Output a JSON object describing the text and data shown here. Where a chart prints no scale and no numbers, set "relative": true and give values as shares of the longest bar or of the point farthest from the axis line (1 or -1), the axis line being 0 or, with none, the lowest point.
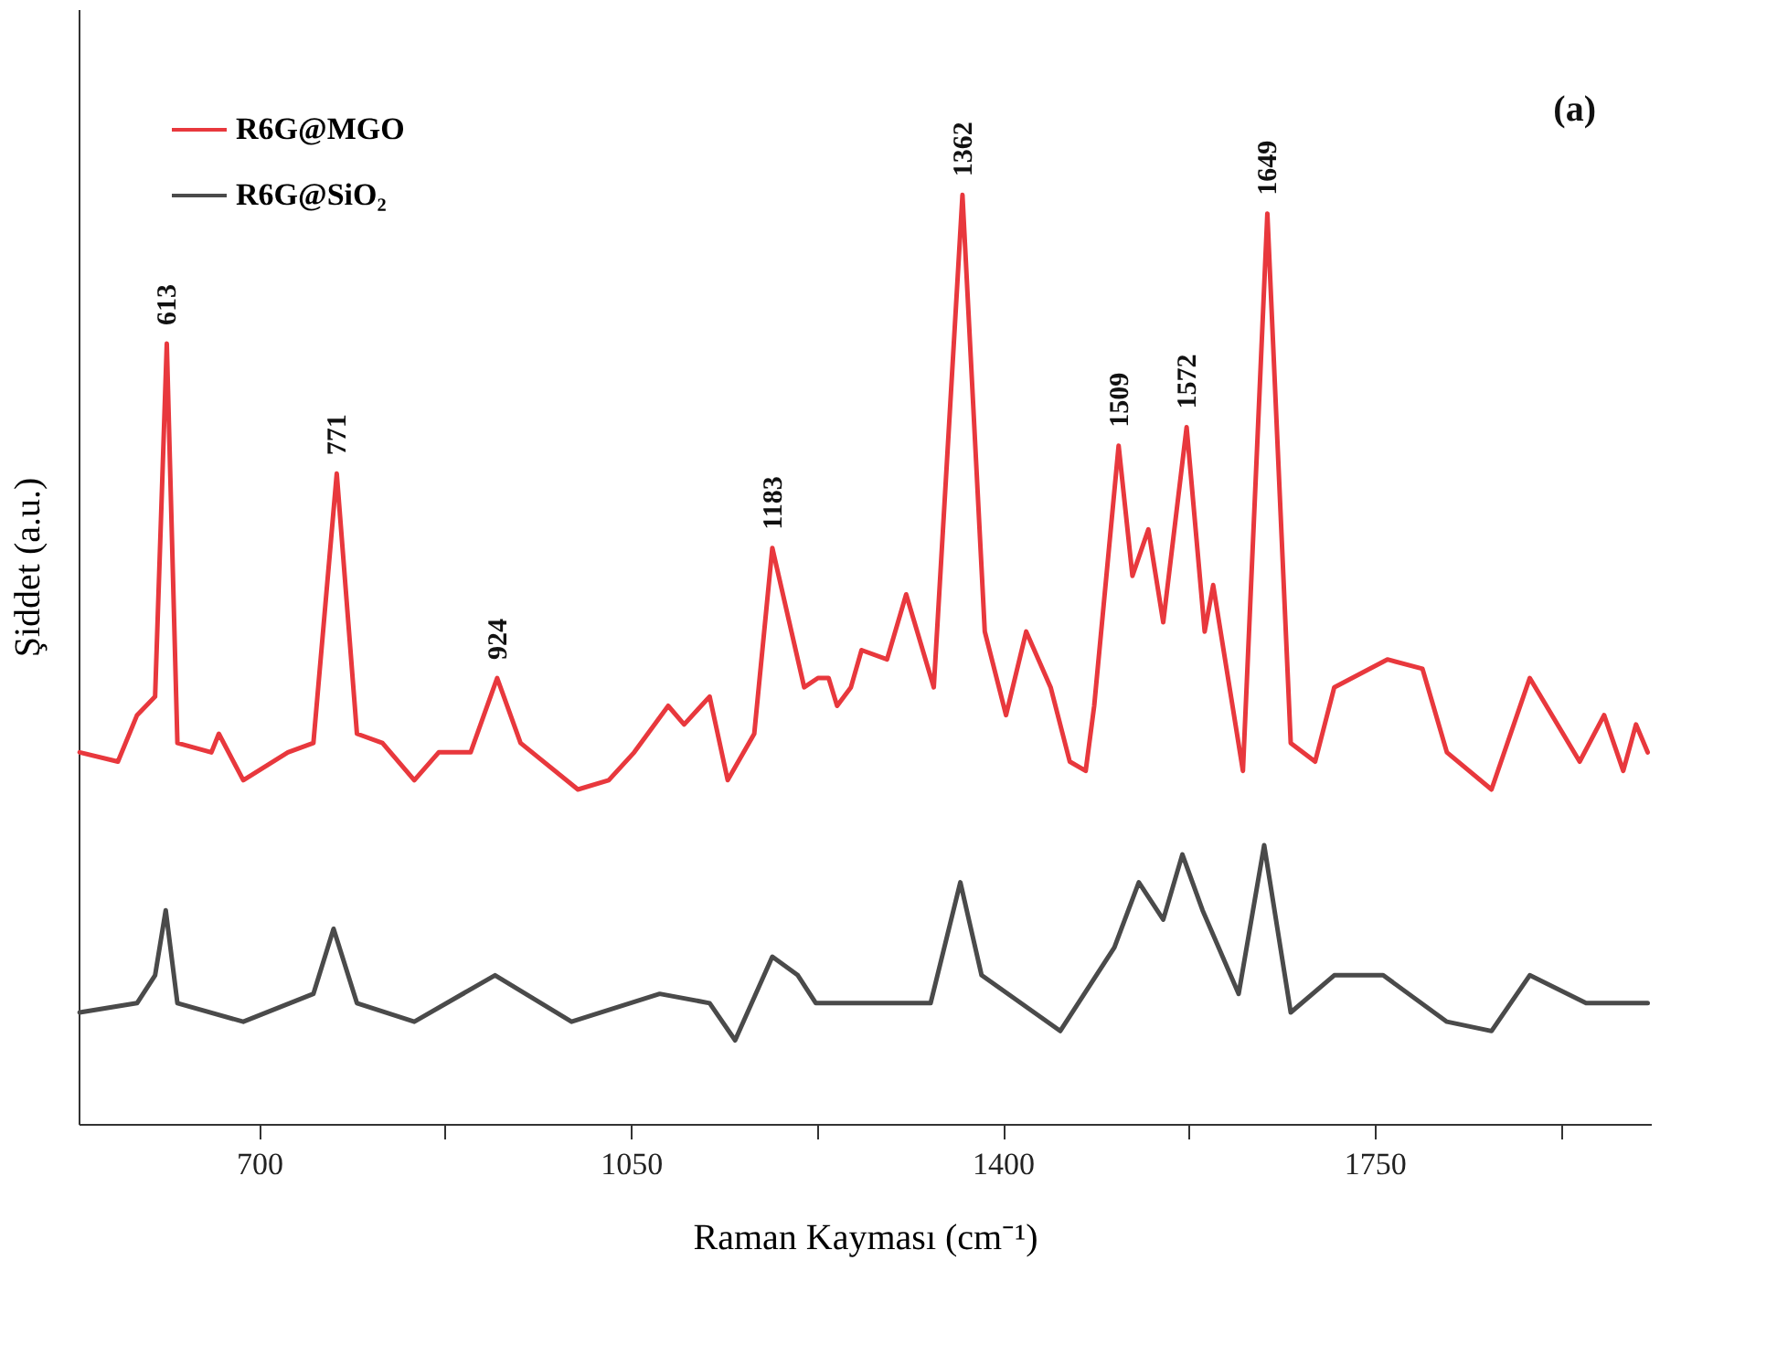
{
  "chart_data": {
    "type": "line",
    "relative": true,
    "xlabel": "Raman Kayması (cm⁻¹)",
    "ylabel": "Şiddet (a.u.)",
    "xlim": [
      530,
      2010
    ],
    "xticks": [
      700,
      {
        "value": 875,
        "label": null
      },
      1050,
      {
        "value": 1225,
        "label": null
      },
      1400,
      {
        "value": 1575,
        "label": null
      },
      1750,
      {
        "value": 1925,
        "label": null
      }
    ],
    "legend": "top left",
    "grid": false,
    "marker": "none",
    "line_style": "solid",
    "series": [
      {
        "name": "R6G@MGO",
        "color": "#e8383d",
        "x": [
          531,
          567,
          585,
          602,
          613,
          623,
          655,
          662,
          685,
          727,
          751,
          773,
          792,
          816,
          846,
          869,
          899,
          924,
          946,
          1000,
          1029,
          1053,
          1085,
          1100,
          1124,
          1141,
          1166,
          1183,
          1201,
          1213,
          1226,
          1236,
          1244,
          1257,
          1267,
          1291,
          1309,
          1335,
          1362,
          1383,
          1403,
          1422,
          1445,
          1463,
          1478,
          1486,
          1509,
          1522,
          1537,
          1551,
          1573,
          1590,
          1598,
          1626,
          1649,
          1671,
          1694,
          1712,
          1762,
          1795,
          1818,
          1860,
          1896,
          1943,
          1966,
          1984,
          1996,
          2007
        ],
        "values": [
          0.4,
          0.39,
          0.44,
          0.46,
          0.84,
          0.41,
          0.4,
          0.42,
          0.37,
          0.4,
          0.41,
          0.7,
          0.42,
          0.41,
          0.37,
          0.4,
          0.4,
          0.48,
          0.41,
          0.36,
          0.37,
          0.4,
          0.45,
          0.43,
          0.46,
          0.37,
          0.42,
          0.62,
          0.53,
          0.47,
          0.48,
          0.48,
          0.45,
          0.47,
          0.51,
          0.5,
          0.57,
          0.47,
          1.0,
          0.53,
          0.44,
          0.53,
          0.47,
          0.39,
          0.38,
          0.45,
          0.73,
          0.59,
          0.64,
          0.54,
          0.75,
          0.53,
          0.58,
          0.38,
          0.98,
          0.41,
          0.39,
          0.47,
          0.5,
          0.49,
          0.4,
          0.36,
          0.48,
          0.39,
          0.44,
          0.38,
          0.43,
          0.4
        ]
      },
      {
        "name": "R6G@SiO₂",
        "color": "#4a4a4a",
        "x": [
          531,
          585,
          602,
          612,
          623,
          685,
          751,
          770,
          792,
          846,
          922,
          994,
          1077,
          1124,
          1148,
          1183,
          1207,
          1224,
          1332,
          1360,
          1380,
          1454,
          1505,
          1528,
          1551,
          1569,
          1588,
          1622,
          1646,
          1671,
          1712,
          1758,
          1818,
          1860,
          1896,
          1949,
          2007
        ],
        "values": [
          0.12,
          0.13,
          0.16,
          0.23,
          0.13,
          0.11,
          0.14,
          0.21,
          0.13,
          0.11,
          0.16,
          0.11,
          0.14,
          0.13,
          0.09,
          0.18,
          0.16,
          0.13,
          0.13,
          0.26,
          0.16,
          0.1,
          0.19,
          0.26,
          0.22,
          0.29,
          0.23,
          0.14,
          0.3,
          0.12,
          0.16,
          0.16,
          0.11,
          0.1,
          0.16,
          0.13,
          0.13
        ]
      }
    ],
    "annotations": [
      {
        "text": "613",
        "x": 613,
        "y": 0.84
      },
      {
        "text": "771",
        "x": 773,
        "y": 0.7
      },
      {
        "text": "924",
        "x": 924,
        "y": 0.48
      },
      {
        "text": "1183",
        "x": 1183,
        "y": 0.62
      },
      {
        "text": "1362",
        "x": 1362,
        "y": 1.0
      },
      {
        "text": "1509",
        "x": 1509,
        "y": 0.73
      },
      {
        "text": "1572",
        "x": 1573,
        "y": 0.75
      },
      {
        "text": "1649",
        "x": 1649,
        "y": 0.98
      },
      "(a)"
    ]
  }
}
